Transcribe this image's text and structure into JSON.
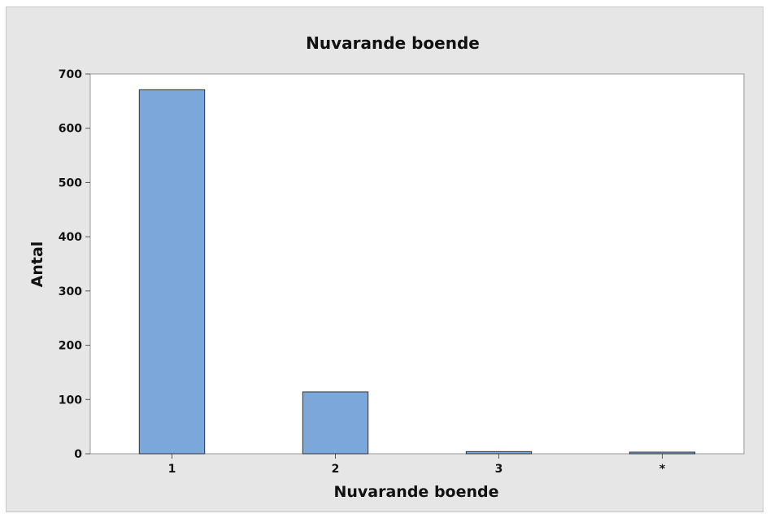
{
  "chart_data": {
    "type": "bar",
    "title": "Nuvarande boende",
    "xlabel": "Nuvarande boende",
    "ylabel": "Antal",
    "categories": [
      "1",
      "2",
      "3",
      "*"
    ],
    "values": [
      671,
      114,
      4,
      3
    ],
    "ylim": [
      0,
      700
    ],
    "yticks": [
      0,
      100,
      200,
      300,
      400,
      500,
      600,
      700
    ],
    "grid": false,
    "legend": "none",
    "colors": {
      "bar_fill": "#7ba7db",
      "bar_stroke": "#333333",
      "plot_bg": "#ffffff",
      "frame_bg": "#e6e6e6"
    }
  }
}
